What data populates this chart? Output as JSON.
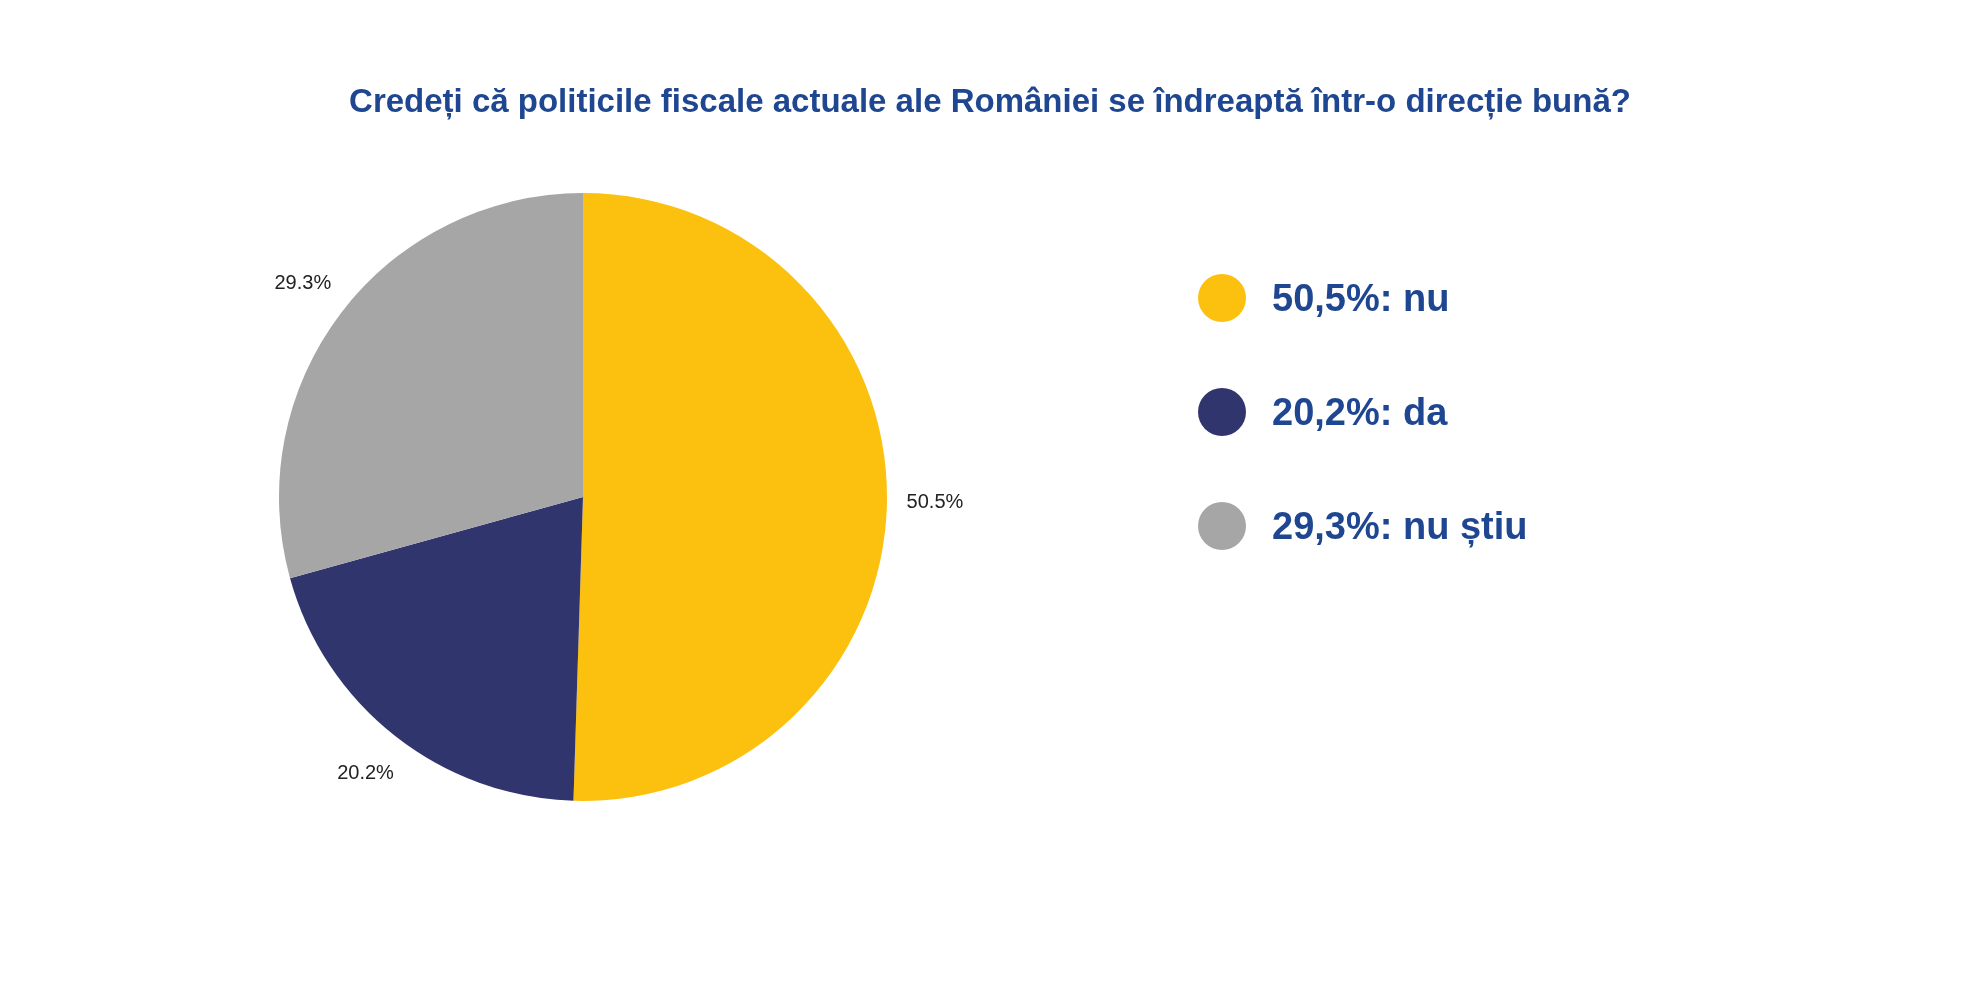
{
  "chart_data": {
    "type": "pie",
    "title": "Credeți că politicile fiscale actuale ale României se îndreaptă într-o direcție bună?",
    "categories": [
      "50,5%: nu",
      "20,2%: da",
      "29,3%: nu știu"
    ],
    "values": [
      50.5,
      20.2,
      29.3
    ],
    "colors": [
      "#fcc10f",
      "#31356e",
      "#a6a6a6"
    ],
    "value_labels": [
      "50.5%",
      "20.2%",
      "29.3%"
    ],
    "legend": "right"
  }
}
